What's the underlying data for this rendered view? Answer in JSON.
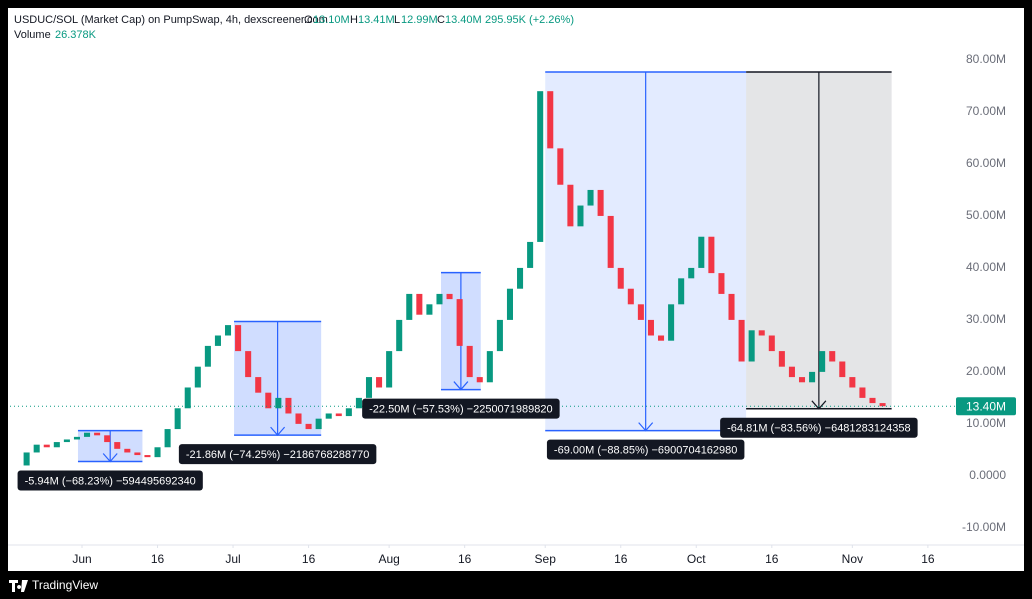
{
  "header": {
    "symbol": "USDUC/SOL (Market Cap) on PumpSwap, 4h, dexscreener.com",
    "o_label": "O",
    "o": "13.10M",
    "h_label": "H",
    "h": "13.41M",
    "l_label": "L",
    "l": "12.99M",
    "c_label": "C",
    "c": "13.40M",
    "change": "295.95K (+2.26%)",
    "volume_label": "Volume",
    "volume": "26.378K"
  },
  "chart_data": {
    "type": "candlestick",
    "up_color": "#089981",
    "down_color": "#f23645",
    "xlim": [
      -14.3,
      171.4
    ],
    "xticks": [
      {
        "value": 0,
        "label": "Jun"
      },
      {
        "value": 15,
        "label": "16"
      },
      {
        "value": 30,
        "label": "Jul"
      },
      {
        "value": 45,
        "label": "16"
      },
      {
        "value": 61,
        "label": "Aug"
      },
      {
        "value": 76,
        "label": "16"
      },
      {
        "value": 92,
        "label": "Sep"
      },
      {
        "value": 107,
        "label": "16"
      },
      {
        "value": 122,
        "label": "Oct"
      },
      {
        "value": 137,
        "label": "16"
      },
      {
        "value": 153,
        "label": "Nov"
      },
      {
        "value": 168,
        "label": "16"
      }
    ],
    "ylim": [
      -13.3,
      90
    ],
    "yticks": [
      {
        "value": 80,
        "label": "80.00M"
      },
      {
        "value": 70,
        "label": "70.00M"
      },
      {
        "value": 60,
        "label": "60.00M"
      },
      {
        "value": 50,
        "label": "50.00M"
      },
      {
        "value": 40,
        "label": "40.00M"
      },
      {
        "value": 30,
        "label": "30.00M"
      },
      {
        "value": 20,
        "label": "20.00M"
      },
      {
        "value": 10,
        "label": "10.00M"
      },
      {
        "value": 0,
        "label": "0.0000"
      },
      {
        "value": -10,
        "label": "-10.00M"
      }
    ],
    "x": [
      -12,
      -10,
      -8,
      -6,
      -4,
      -2,
      0,
      2,
      4,
      6,
      8,
      10,
      12,
      14,
      16,
      18,
      20,
      22,
      24,
      26,
      28,
      30,
      32,
      34,
      36,
      38,
      40,
      42,
      44,
      46,
      48,
      50,
      52,
      54,
      56,
      58,
      60,
      62,
      64,
      66,
      68,
      70,
      72,
      74,
      76,
      78,
      80,
      82,
      84,
      86,
      88,
      90,
      92,
      94,
      96,
      98,
      100,
      102,
      104,
      106,
      108,
      110,
      112,
      114,
      116,
      118,
      120,
      122,
      124,
      126,
      128,
      130,
      132,
      134,
      136,
      138,
      140,
      142,
      144,
      146,
      148,
      150,
      152,
      154,
      156,
      158,
      160
    ],
    "values": [
      2,
      4.5,
      6,
      5.5,
      6.5,
      7,
      7.5,
      8.3,
      7.8,
      6.5,
      5.2,
      4.5,
      4,
      3.6,
      5.5,
      9,
      13,
      17,
      21,
      25,
      27,
      29,
      24,
      19,
      16,
      13,
      15,
      12,
      10,
      9,
      11,
      12,
      11.5,
      13,
      15,
      19,
      17,
      24,
      30,
      35,
      31,
      33,
      35,
      34,
      25,
      19,
      18,
      24,
      30,
      36,
      40,
      45,
      74,
      63,
      56,
      48,
      52,
      55,
      50,
      40,
      36,
      33,
      30,
      27,
      26,
      33,
      38,
      40,
      46,
      39,
      35,
      30,
      22,
      28,
      27,
      24,
      21,
      19,
      18,
      20,
      24,
      22,
      19,
      17,
      15,
      14,
      13.4
    ],
    "last_price": {
      "value": 13.4,
      "label": "13.40M"
    },
    "annotations": [
      {
        "x1": -0.8,
        "x2": 12,
        "top": 8.7,
        "bottom": 2.76,
        "label": "-5.94M (−68.23%) −594495692340",
        "fill": "rgba(41,98,255,0.22)",
        "color": "#2962ff"
      },
      {
        "x1": 30.2,
        "x2": 47.5,
        "top": 29.7,
        "bottom": 7.84,
        "label": "-21.86M (−74.25%) −2186768288770",
        "fill": "rgba(41,98,255,0.22)",
        "color": "#2962ff"
      },
      {
        "x1": 71.3,
        "x2": 79.2,
        "top": 39.1,
        "bottom": 16.6,
        "label": "-22.50M (−57.53%) −2250071989820",
        "fill": "rgba(41,98,255,0.22)",
        "color": "#2962ff"
      },
      {
        "x1": 92,
        "x2": 131.9,
        "top": 77.7,
        "bottom": 8.7,
        "label": "-69.00M (−88.85%) −6900704162980",
        "fill": "rgba(41,98,255,0.13)",
        "color": "#2962ff"
      },
      {
        "x1": 131.9,
        "x2": 160.8,
        "top": 77.7,
        "bottom": 12.9,
        "label": "-64.81M (−83.56%) −6481283124358",
        "fill": "rgba(120,123,134,0.2)",
        "color": "#131722"
      }
    ]
  },
  "footer": {
    "brand": "TradingView"
  }
}
